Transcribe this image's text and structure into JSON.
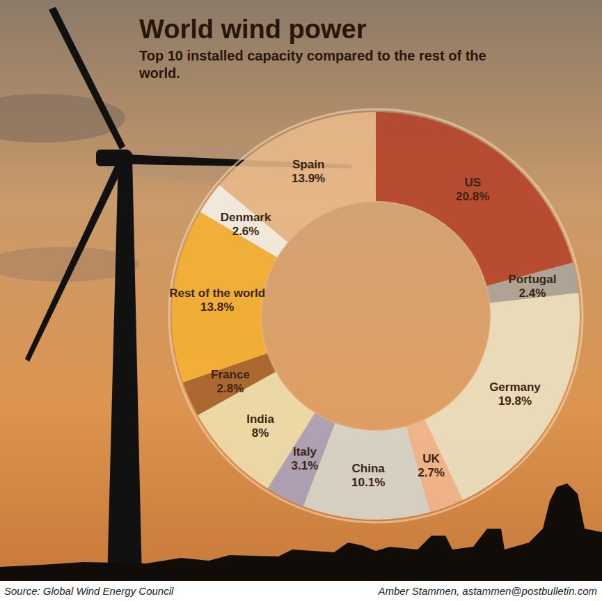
{
  "chart_data": {
    "type": "donut",
    "title": "World wind power",
    "subtitle": "Top 10 installed capacity compared to the rest of the world.",
    "categories": [
      "US",
      "Portugal",
      "Germany",
      "UK",
      "China",
      "Italy",
      "India",
      "France",
      "Rest of the world",
      "Denmark",
      "Spain"
    ],
    "values": [
      20.8,
      2.4,
      19.8,
      2.7,
      10.1,
      3.1,
      8,
      2.8,
      13.8,
      2.6,
      13.9
    ],
    "value_labels": [
      "20.8%",
      "2.4%",
      "19.8%",
      "2.7%",
      "10.1%",
      "3.1%",
      "8%",
      "2.8%",
      "13.8%",
      "2.6%",
      "13.9%"
    ],
    "colors": [
      "#b5412a",
      "#a9a59c",
      "#ece4c6",
      "#f2b892",
      "#d6d9d3",
      "#a8a2c2",
      "#ede1b2",
      "#a5622c",
      "#f5b232",
      "#f6f2ea",
      "#e8b98a"
    ],
    "data_labels": true,
    "source": "Source: Global Wind Energy Council",
    "credit": "Amber Stammen, astammen@postbulletin.com"
  }
}
